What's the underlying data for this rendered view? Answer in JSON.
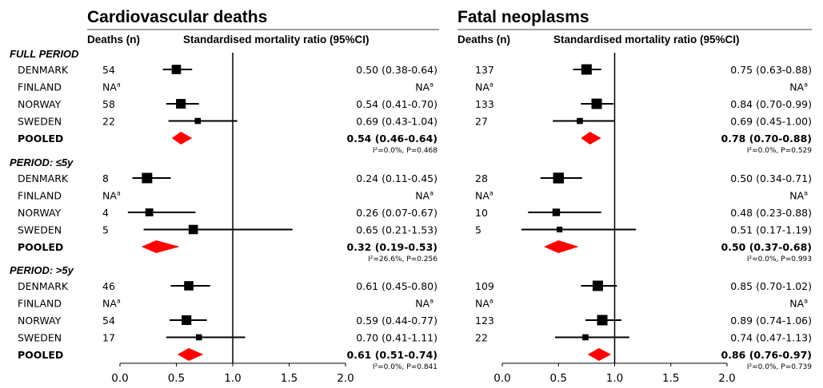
{
  "chart_data": [
    {
      "type": "forest",
      "title": "Cardiovascular deaths",
      "col_deaths": "Deaths (n)",
      "col_smr": "Standardised mortality ratio (95%CI)",
      "xticks": [
        "0.0",
        "0.5",
        "1.0",
        "1.5",
        "2.0"
      ],
      "xlim": [
        0,
        2
      ],
      "reference_line": 1.0,
      "na_label": "NA",
      "na_sup": "a",
      "groups": [
        {
          "label": "FULL PERIOD",
          "rows": [
            {
              "country": "DENMARK",
              "deaths": "54",
              "smr": 0.5,
              "lo": 0.38,
              "hi": 0.64,
              "text": "0.50 (0.38-0.64)",
              "weight": 0.85
            },
            {
              "country": "FINLAND",
              "na": true
            },
            {
              "country": "NORWAY",
              "deaths": "58",
              "smr": 0.54,
              "lo": 0.41,
              "hi": 0.7,
              "text": "0.54 (0.41-0.70)",
              "weight": 0.9
            },
            {
              "country": "SWEDEN",
              "deaths": "22",
              "smr": 0.69,
              "lo": 0.43,
              "hi": 1.04,
              "text": "0.69 (0.43-1.04)",
              "weight": 0.4
            }
          ],
          "pooled": {
            "label": "POOLED",
            "smr": 0.54,
            "lo": 0.46,
            "hi": 0.64,
            "text": "0.54 (0.46-0.64)",
            "het": "I²=0.0%, P=0.468"
          }
        },
        {
          "label": "PERIOD: ≤5y",
          "rows": [
            {
              "country": "DENMARK",
              "deaths": "8",
              "smr": 0.24,
              "lo": 0.11,
              "hi": 0.45,
              "text": "0.24 (0.11-0.45)",
              "weight": 1.0
            },
            {
              "country": "FINLAND",
              "na": true
            },
            {
              "country": "NORWAY",
              "deaths": "4",
              "smr": 0.26,
              "lo": 0.07,
              "hi": 0.67,
              "text": "0.26 (0.07-0.67)",
              "weight": 0.65
            },
            {
              "country": "SWEDEN",
              "deaths": "5",
              "smr": 0.65,
              "lo": 0.21,
              "hi": 1.53,
              "text": "0.65 (0.21-1.53)",
              "weight": 0.85
            }
          ],
          "pooled": {
            "label": "POOLED",
            "smr": 0.32,
            "lo": 0.19,
            "hi": 0.53,
            "text": "0.32 (0.19-0.53)",
            "het": "I²=26.6%, P=0.256"
          }
        },
        {
          "label": "PERIOD: >5y",
          "rows": [
            {
              "country": "DENMARK",
              "deaths": "46",
              "smr": 0.61,
              "lo": 0.45,
              "hi": 0.8,
              "text": "0.61 (0.45-0.80)",
              "weight": 0.85
            },
            {
              "country": "FINLAND",
              "na": true
            },
            {
              "country": "NORWAY",
              "deaths": "54",
              "smr": 0.59,
              "lo": 0.44,
              "hi": 0.77,
              "text": "0.59 (0.44-0.77)",
              "weight": 0.9
            },
            {
              "country": "SWEDEN",
              "deaths": "17",
              "smr": 0.7,
              "lo": 0.41,
              "hi": 1.11,
              "text": "0.70 (0.41-1.11)",
              "weight": 0.4
            }
          ],
          "pooled": {
            "label": "POOLED",
            "smr": 0.61,
            "lo": 0.51,
            "hi": 0.74,
            "text": "0.61 (0.51-0.74)",
            "het": "I²=0.0%, P=0.841"
          }
        }
      ]
    },
    {
      "type": "forest",
      "title": "Fatal neoplasms",
      "col_deaths": "Deaths (n)",
      "col_smr": "Standardised mortality ratio (95%CI)",
      "xticks": [
        "0.0",
        "0.5",
        "1.0",
        "1.5",
        "2.0"
      ],
      "xlim": [
        0,
        2
      ],
      "reference_line": 1.0,
      "na_label": "NA",
      "na_sup": "a",
      "groups": [
        {
          "label": "",
          "rows": [
            {
              "country": "",
              "deaths": "137",
              "smr": 0.75,
              "lo": 0.63,
              "hi": 0.88,
              "text": "0.75 (0.63-0.88)",
              "weight": 1.0
            },
            {
              "country": "",
              "na": true
            },
            {
              "country": "",
              "deaths": "133",
              "smr": 0.84,
              "lo": 0.7,
              "hi": 0.99,
              "text": "0.84 (0.70-0.99)",
              "weight": 1.0
            },
            {
              "country": "",
              "deaths": "27",
              "smr": 0.69,
              "lo": 0.45,
              "hi": 1.0,
              "text": "0.69 (0.45-1.00)",
              "weight": 0.4
            }
          ],
          "pooled": {
            "label": "",
            "smr": 0.78,
            "lo": 0.7,
            "hi": 0.88,
            "text": "0.78 (0.70-0.88)",
            "het": "I²=0.0%, P=0.529"
          }
        },
        {
          "label": "",
          "rows": [
            {
              "country": "",
              "deaths": "28",
              "smr": 0.5,
              "lo": 0.34,
              "hi": 0.71,
              "text": "0.50 (0.34-0.71)",
              "weight": 1.05
            },
            {
              "country": "",
              "na": true
            },
            {
              "country": "",
              "deaths": "10",
              "smr": 0.48,
              "lo": 0.23,
              "hi": 0.88,
              "text": "0.48 (0.23-0.88)",
              "weight": 0.6
            },
            {
              "country": "",
              "deaths": "5",
              "smr": 0.51,
              "lo": 0.17,
              "hi": 1.19,
              "text": "0.51 (0.17-1.19)",
              "weight": 0.35
            }
          ],
          "pooled": {
            "label": "",
            "smr": 0.5,
            "lo": 0.37,
            "hi": 0.68,
            "text": "0.50 (0.37-0.68)",
            "het": "I²=0.0%, P=0.993"
          }
        },
        {
          "label": "",
          "rows": [
            {
              "country": "",
              "deaths": "109",
              "smr": 0.85,
              "lo": 0.7,
              "hi": 1.02,
              "text": "0.85 (0.70-1.02)",
              "weight": 1.0
            },
            {
              "country": "",
              "na": true
            },
            {
              "country": "",
              "deaths": "123",
              "smr": 0.89,
              "lo": 0.74,
              "hi": 1.06,
              "text": "0.89 (0.74-1.06)",
              "weight": 1.0
            },
            {
              "country": "",
              "deaths": "22",
              "smr": 0.74,
              "lo": 0.47,
              "hi": 1.13,
              "text": "0.74 (0.47-1.13)",
              "weight": 0.4
            }
          ],
          "pooled": {
            "label": "",
            "smr": 0.86,
            "lo": 0.76,
            "hi": 0.97,
            "text": "0.86 (0.76-0.97)",
            "het": "I²=0.0%, P=0.739"
          }
        }
      ]
    }
  ],
  "colors": {
    "marker": "#000000",
    "pooled": "#ff0000",
    "line": "#000000"
  }
}
